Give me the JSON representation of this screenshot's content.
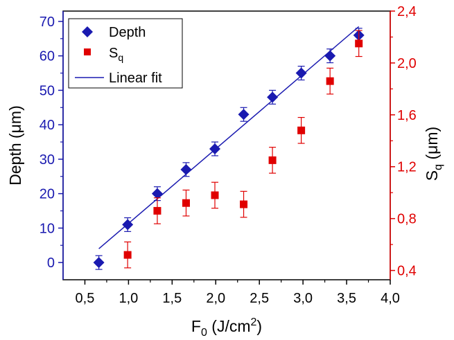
{
  "chart_data": {
    "type": "scatter",
    "title": "",
    "x_axis": {
      "label_main": "F",
      "label_sub": "0",
      "label_unit": " (J/cm",
      "label_sup": "2",
      "label_close": ")",
      "range": [
        0.25,
        4.0
      ],
      "ticks": [
        "0,5",
        "1,0",
        "1,5",
        "2,0",
        "2,5",
        "3,0",
        "3,5",
        "4,0"
      ],
      "tick_values": [
        0.5,
        1.0,
        1.5,
        2.0,
        2.5,
        3.0,
        3.5,
        4.0
      ]
    },
    "y_left": {
      "label": "Depth (μm)",
      "range": [
        -5,
        73
      ],
      "ticks": [
        "0",
        "10",
        "20",
        "30",
        "40",
        "50",
        "60",
        "70"
      ],
      "tick_values": [
        0,
        10,
        20,
        30,
        40,
        50,
        60,
        70
      ],
      "color": "#1a1ab0"
    },
    "y_right": {
      "label_main": "S",
      "label_sub": "q",
      "label_unit": " (μm)",
      "range": [
        0.3283,
        2.4
      ],
      "ticks": [
        "0,4",
        "0,8",
        "1,2",
        "1,6",
        "2,0",
        "2,4"
      ],
      "tick_values": [
        0.4,
        0.8,
        1.2,
        1.6,
        2.0,
        2.4
      ],
      "color": "#e00000"
    },
    "legend": {
      "placement": "top-left",
      "entries": [
        {
          "label": "Depth"
        },
        {
          "label_main": "S",
          "label_sub": "q"
        },
        {
          "label": "Linear fit"
        }
      ]
    },
    "series": [
      {
        "name": "Depth",
        "axis": "left",
        "marker": "diamond",
        "color": "#1a1ab0",
        "x": [
          0.66,
          0.99,
          1.33,
          1.66,
          1.99,
          2.32,
          2.65,
          2.98,
          3.31,
          3.64
        ],
        "y": [
          0,
          11,
          20,
          27,
          33,
          43,
          48,
          55,
          60,
          66
        ],
        "err": [
          2,
          2,
          2,
          2,
          2,
          2,
          2,
          2,
          2,
          2
        ]
      },
      {
        "name": "Sq",
        "axis": "right",
        "marker": "square",
        "color": "#e00000",
        "x": [
          0.99,
          1.33,
          1.66,
          1.99,
          2.32,
          2.65,
          2.98,
          3.31,
          3.64
        ],
        "y": [
          0.52,
          0.86,
          0.92,
          0.98,
          0.91,
          1.25,
          1.48,
          1.86,
          2.15
        ],
        "err": [
          0.1,
          0.1,
          0.1,
          0.1,
          0.1,
          0.1,
          0.1,
          0.1,
          0.1
        ]
      },
      {
        "name": "Linear fit",
        "axis": "left",
        "type": "line",
        "color": "#1a1ab0",
        "x": [
          0.66,
          3.64
        ],
        "y": [
          4,
          68.5
        ]
      }
    ]
  }
}
